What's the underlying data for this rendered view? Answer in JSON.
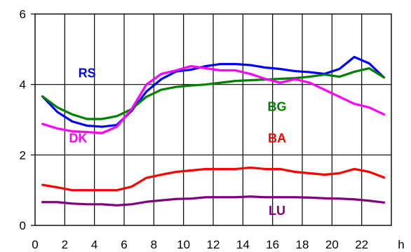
{
  "chart_data": {
    "type": "line",
    "title": "",
    "xlabel": "",
    "ylabel": "",
    "x_unit_label": "h",
    "xlim": [
      0,
      24
    ],
    "ylim": [
      0,
      6
    ],
    "x_ticks": [
      "0",
      "2",
      "4",
      "6",
      "8",
      "10",
      "12",
      "14",
      "16",
      "18",
      "20",
      "22"
    ],
    "y_ticks": [
      "0",
      "2",
      "4",
      "6"
    ],
    "grid": true,
    "legend": "inline labels",
    "x": [
      0.5,
      1.5,
      2.5,
      3.5,
      4.5,
      5.5,
      6.5,
      7.5,
      8.5,
      9.5,
      10.5,
      11.5,
      12.5,
      13.5,
      14.5,
      15.5,
      16.5,
      17.5,
      18.5,
      19.5,
      20.5,
      21.5,
      22.5,
      23.5
    ],
    "series": [
      {
        "name": "RS",
        "color": "#0000ff",
        "values": [
          3.66,
          3.22,
          2.95,
          2.83,
          2.8,
          2.85,
          3.25,
          3.8,
          4.15,
          4.37,
          4.42,
          4.52,
          4.58,
          4.58,
          4.55,
          4.48,
          4.44,
          4.38,
          4.35,
          4.3,
          4.44,
          4.78,
          4.6,
          4.2
        ]
      },
      {
        "name": "BG",
        "color": "#008000",
        "values": [
          3.66,
          3.35,
          3.15,
          3.02,
          3.02,
          3.1,
          3.3,
          3.65,
          3.85,
          3.93,
          3.97,
          4.0,
          4.05,
          4.1,
          4.12,
          4.14,
          4.16,
          4.18,
          4.22,
          4.28,
          4.22,
          4.36,
          4.46,
          4.2
        ]
      },
      {
        "name": "DK",
        "color": "#ff00ff",
        "values": [
          2.88,
          2.75,
          2.67,
          2.65,
          2.62,
          2.8,
          3.3,
          4.0,
          4.3,
          4.4,
          4.52,
          4.46,
          4.4,
          4.4,
          4.3,
          4.16,
          4.05,
          4.15,
          4.05,
          3.85,
          3.65,
          3.45,
          3.35,
          3.15
        ]
      },
      {
        "name": "BA",
        "color": "#ff0000",
        "values": [
          1.15,
          1.08,
          1.0,
          1.0,
          1.0,
          1.0,
          1.1,
          1.35,
          1.44,
          1.52,
          1.56,
          1.6,
          1.6,
          1.6,
          1.64,
          1.6,
          1.6,
          1.52,
          1.48,
          1.44,
          1.48,
          1.6,
          1.52,
          1.36
        ]
      },
      {
        "name": "LU",
        "color": "#800080",
        "values": [
          0.66,
          0.66,
          0.62,
          0.6,
          0.6,
          0.57,
          0.6,
          0.67,
          0.71,
          0.75,
          0.76,
          0.8,
          0.8,
          0.8,
          0.82,
          0.8,
          0.8,
          0.8,
          0.79,
          0.77,
          0.76,
          0.74,
          0.7,
          0.65
        ]
      }
    ],
    "labels": [
      {
        "text": "RS",
        "color": "#0000ff",
        "x": 3.5,
        "y": 4.2
      },
      {
        "text": "BG",
        "color": "#008000",
        "x": 16.3,
        "y": 3.25
      },
      {
        "text": "DK",
        "color": "#ff00ff",
        "x": 2.9,
        "y": 2.35
      },
      {
        "text": "BA",
        "color": "#ff0000",
        "x": 16.3,
        "y": 2.35
      },
      {
        "text": "LU",
        "color": "#800080",
        "x": 16.3,
        "y": 0.3
      }
    ]
  }
}
